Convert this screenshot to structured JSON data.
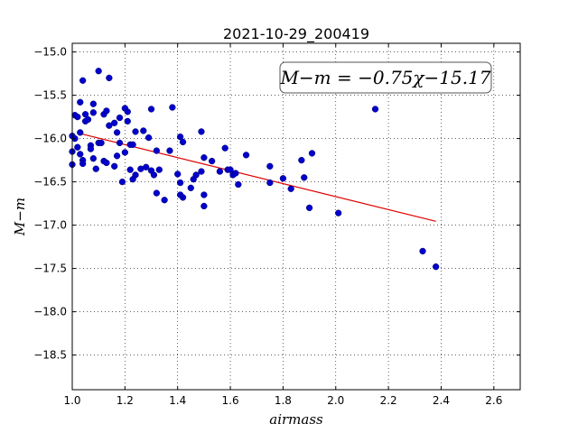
{
  "chart_data": {
    "type": "scatter",
    "title": "2021-10-29_200419",
    "xlabel": "airmass",
    "ylabel": "M−m",
    "xlim": [
      1.0,
      2.7
    ],
    "ylim": [
      -14.9,
      -18.9
    ],
    "y_inverted": true,
    "xticks": [
      "1.0",
      "1.2",
      "1.4",
      "1.6",
      "1.8",
      "2.0",
      "2.2",
      "2.4",
      "2.6"
    ],
    "yticks": [
      "−15.0",
      "−15.5",
      "−16.0",
      "−16.5",
      "−17.0",
      "−17.5",
      "−18.0",
      "−18.5"
    ],
    "grid": true,
    "annotation": "M−m = −0.75χ−15.17",
    "annotation_position": "top-right",
    "point_color": "#0000cc",
    "fit_color": "#e00000",
    "fit_line": {
      "slope": -0.75,
      "intercept": -15.17,
      "x_range": [
        1.03,
        2.38
      ]
    },
    "points": [
      [
        1.0,
        -15.97
      ],
      [
        1.0,
        -16.15
      ],
      [
        1.0,
        -16.3
      ],
      [
        1.01,
        -16.0
      ],
      [
        1.01,
        -15.73
      ],
      [
        1.02,
        -16.1
      ],
      [
        1.02,
        -15.75
      ],
      [
        1.03,
        -15.58
      ],
      [
        1.03,
        -15.93
      ],
      [
        1.03,
        -16.18
      ],
      [
        1.04,
        -16.25
      ],
      [
        1.04,
        -16.29
      ],
      [
        1.04,
        -15.33
      ],
      [
        1.05,
        -15.72
      ],
      [
        1.05,
        -15.8
      ],
      [
        1.06,
        -15.78
      ],
      [
        1.07,
        -16.08
      ],
      [
        1.07,
        -16.12
      ],
      [
        1.08,
        -15.6
      ],
      [
        1.08,
        -15.7
      ],
      [
        1.08,
        -16.23
      ],
      [
        1.09,
        -16.35
      ],
      [
        1.1,
        -15.22
      ],
      [
        1.1,
        -16.05
      ],
      [
        1.11,
        -16.05
      ],
      [
        1.12,
        -16.26
      ],
      [
        1.12,
        -15.72
      ],
      [
        1.13,
        -15.68
      ],
      [
        1.13,
        -16.28
      ],
      [
        1.14,
        -15.3
      ],
      [
        1.14,
        -15.85
      ],
      [
        1.16,
        -15.82
      ],
      [
        1.16,
        -16.32
      ],
      [
        1.17,
        -16.2
      ],
      [
        1.17,
        -15.93
      ],
      [
        1.18,
        -16.05
      ],
      [
        1.18,
        -15.76
      ],
      [
        1.19,
        -16.5
      ],
      [
        1.2,
        -16.16
      ],
      [
        1.2,
        -15.65
      ],
      [
        1.21,
        -15.8
      ],
      [
        1.21,
        -15.69
      ],
      [
        1.22,
        -16.07
      ],
      [
        1.22,
        -16.36
      ],
      [
        1.23,
        -16.47
      ],
      [
        1.23,
        -16.07
      ],
      [
        1.24,
        -15.92
      ],
      [
        1.24,
        -16.42
      ],
      [
        1.26,
        -16.35
      ],
      [
        1.27,
        -15.91
      ],
      [
        1.28,
        -16.33
      ],
      [
        1.29,
        -15.99
      ],
      [
        1.3,
        -16.37
      ],
      [
        1.3,
        -15.66
      ],
      [
        1.31,
        -16.42
      ],
      [
        1.32,
        -16.14
      ],
      [
        1.32,
        -16.63
      ],
      [
        1.33,
        -16.36
      ],
      [
        1.35,
        -16.71
      ],
      [
        1.37,
        -16.14
      ],
      [
        1.38,
        -15.64
      ],
      [
        1.4,
        -16.41
      ],
      [
        1.41,
        -16.51
      ],
      [
        1.41,
        -16.65
      ],
      [
        1.41,
        -15.98
      ],
      [
        1.42,
        -16.04
      ],
      [
        1.42,
        -16.68
      ],
      [
        1.45,
        -16.57
      ],
      [
        1.46,
        -16.47
      ],
      [
        1.47,
        -16.42
      ],
      [
        1.49,
        -16.38
      ],
      [
        1.49,
        -15.92
      ],
      [
        1.5,
        -16.65
      ],
      [
        1.5,
        -16.78
      ],
      [
        1.5,
        -16.22
      ],
      [
        1.53,
        -16.26
      ],
      [
        1.56,
        -16.38
      ],
      [
        1.58,
        -16.11
      ],
      [
        1.59,
        -16.36
      ],
      [
        1.6,
        -16.36
      ],
      [
        1.61,
        -16.42
      ],
      [
        1.62,
        -16.4
      ],
      [
        1.63,
        -16.53
      ],
      [
        1.66,
        -16.19
      ],
      [
        1.75,
        -16.32
      ],
      [
        1.75,
        -16.51
      ],
      [
        1.8,
        -16.46
      ],
      [
        1.83,
        -16.58
      ],
      [
        1.87,
        -16.25
      ],
      [
        1.88,
        -16.45
      ],
      [
        1.9,
        -16.8
      ],
      [
        1.91,
        -16.17
      ],
      [
        2.01,
        -16.86
      ],
      [
        2.15,
        -15.66
      ],
      [
        2.33,
        -17.3
      ],
      [
        2.38,
        -17.48
      ]
    ]
  }
}
